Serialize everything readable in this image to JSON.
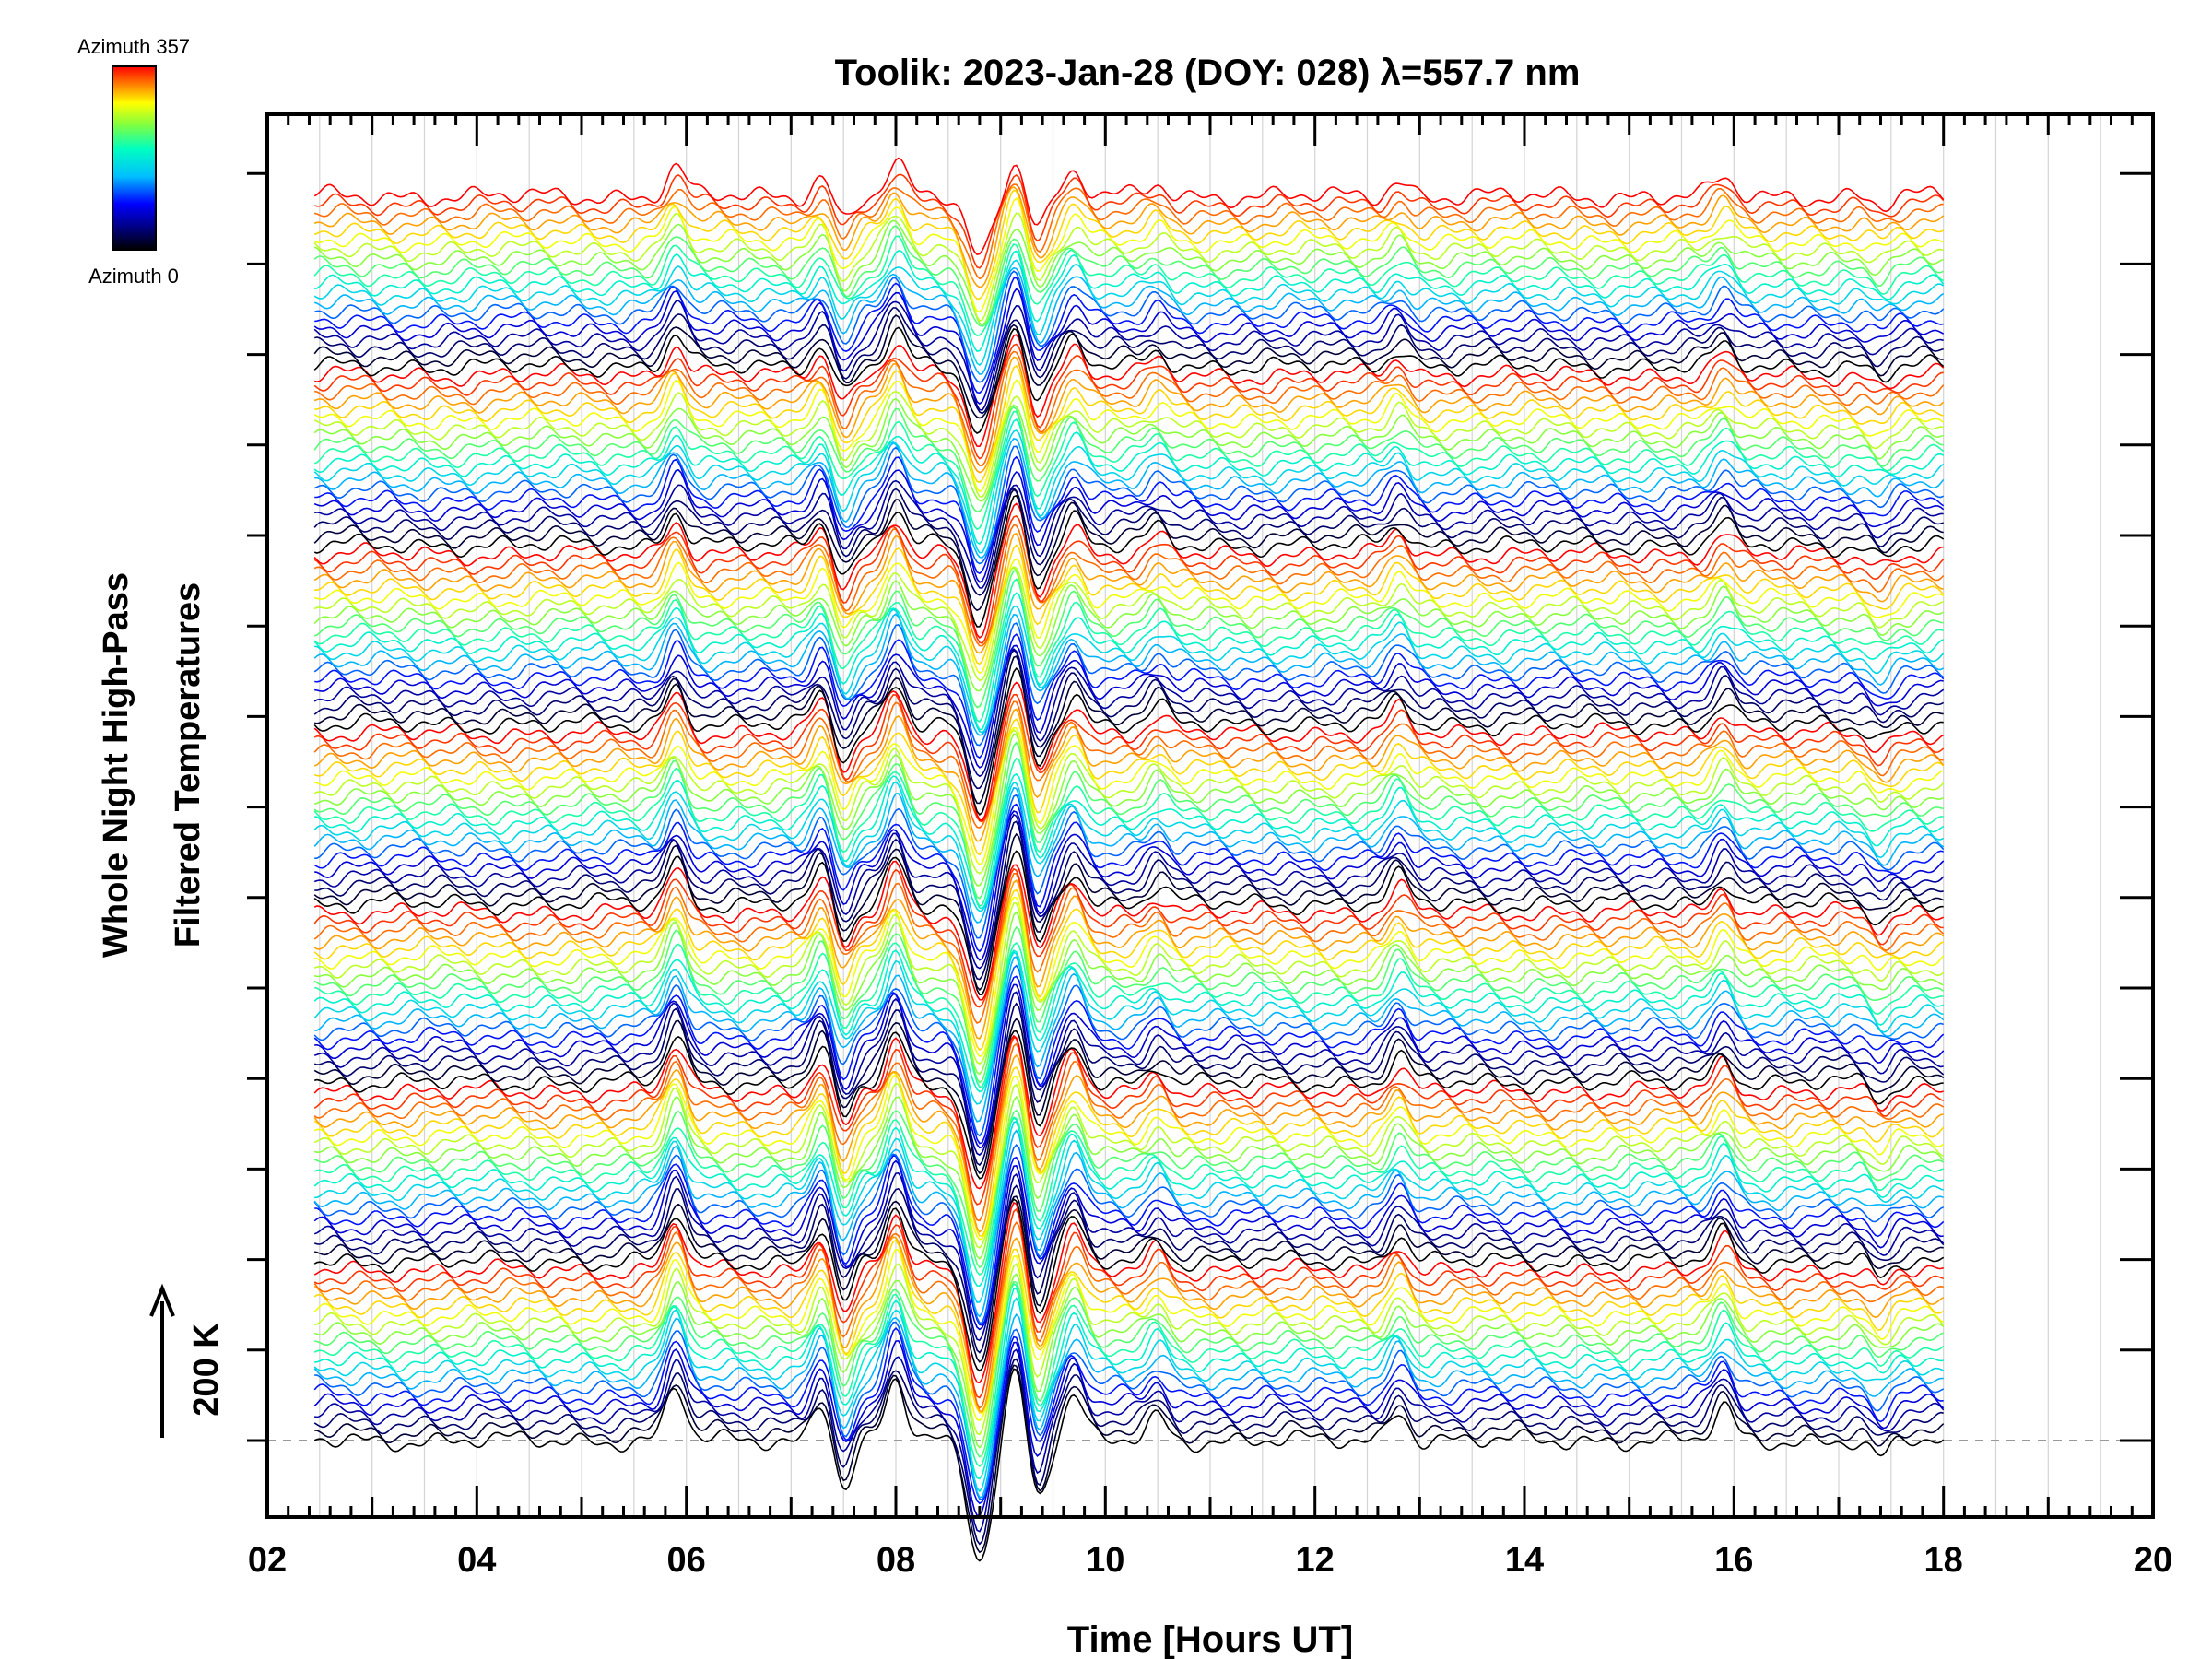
{
  "chart_data": {
    "type": "line",
    "title": "Toolik: 2023-Jan-28 (DOY: 028) λ=557.7 nm",
    "xlabel": "Time [Hours UT]",
    "ylabel_line1": "Whole Night High-Pass",
    "ylabel_line2": "Filtered Temperatures",
    "scale_label": "200 K",
    "xlim": [
      2,
      20
    ],
    "x_tick_labels": [
      "02",
      "04",
      "06",
      "08",
      "10",
      "12",
      "14",
      "16",
      "18",
      "20"
    ],
    "x_ticks": [
      2,
      4,
      6,
      8,
      10,
      12,
      14,
      16,
      18,
      20
    ],
    "data_time_range": [
      2.45,
      18.0
    ],
    "traces_per_group": 20,
    "groups": 7,
    "colorbar": {
      "top_label": "Azimuth 357",
      "bottom_label": "Azimuth 0",
      "colormap": [
        "#000000",
        "#000080",
        "#0000ff",
        "#00bfff",
        "#00ffc0",
        "#80ff40",
        "#ffff00",
        "#ff8000",
        "#ff0000"
      ]
    },
    "features": [
      {
        "time": 5.9,
        "amplitude": 50
      },
      {
        "time": 7.3,
        "amplitude": 40
      },
      {
        "time": 7.5,
        "amplitude": -45
      },
      {
        "time": 8.0,
        "amplitude": 55
      },
      {
        "time": 8.8,
        "amplitude": -110
      },
      {
        "time": 9.15,
        "amplitude": 70
      },
      {
        "time": 9.35,
        "amplitude": -55
      },
      {
        "time": 9.7,
        "amplitude": 40
      },
      {
        "time": 10.5,
        "amplitude": 22
      },
      {
        "time": 12.8,
        "amplitude": 30
      },
      {
        "time": 15.9,
        "amplitude": 30
      },
      {
        "time": 17.4,
        "amplitude": -18
      }
    ],
    "grid": true,
    "baseline_dashed": true
  }
}
